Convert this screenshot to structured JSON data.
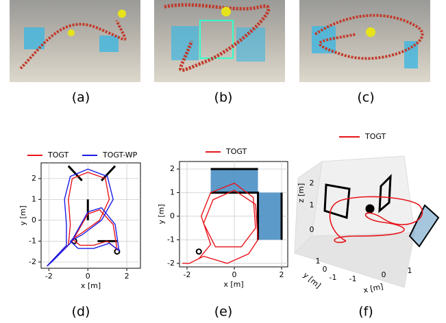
{
  "panels": [
    "(a)",
    "(b)",
    "(c)",
    "(d)",
    "(e)",
    "(f)"
  ],
  "chart_data": [
    {
      "type": "line",
      "xlabel": "x [m]",
      "ylabel": "y [m]",
      "xlim": [
        -2.4,
        2.7
      ],
      "ylim": [
        -2.3,
        2.75
      ],
      "xticks": [
        -2,
        0,
        2
      ],
      "yticks": [
        -2,
        -1,
        0,
        1,
        2
      ],
      "grid": true,
      "legend": "top",
      "series": [
        {
          "name": "TOGT",
          "color": "#e8131a",
          "x": [
            -2.1,
            -1.6,
            -1.0,
            -0.9,
            -1.0,
            -0.8,
            0.0,
            0.9,
            1.1,
            0.6,
            -0.3,
            -0.8,
            -0.4,
            0.3,
            1.0,
            1.5,
            1.3,
            0.6,
            0.0,
            -0.8,
            -1.8,
            -2.1
          ],
          "values": [
            -2.2,
            -1.7,
            -1.2,
            -0.2,
            1.0,
            2.0,
            2.3,
            2.0,
            1.0,
            0.0,
            -0.6,
            -0.9,
            -1.2,
            -1.2,
            -1.0,
            -1.4,
            -0.2,
            0.5,
            0.3,
            -1.0,
            -1.9,
            -2.2
          ]
        },
        {
          "name": "TOGT-WP",
          "color": "#1a1ae8",
          "x": [
            -2.1,
            -1.6,
            -1.1,
            -1.1,
            -1.2,
            -0.9,
            0.0,
            1.0,
            1.3,
            0.7,
            -0.3,
            -0.9,
            -0.5,
            0.3,
            1.1,
            1.6,
            1.4,
            0.7,
            0.0,
            -0.9,
            -1.8,
            -2.1
          ],
          "values": [
            -2.2,
            -1.7,
            -1.2,
            -0.2,
            1.0,
            2.1,
            2.45,
            2.1,
            1.0,
            0.0,
            -0.7,
            -1.0,
            -1.35,
            -1.35,
            -1.1,
            -1.45,
            -0.2,
            0.6,
            0.4,
            -1.1,
            -1.95,
            -2.2
          ]
        }
      ]
    },
    {
      "type": "line",
      "xlabel": "x [m]",
      "ylabel": "y [m]",
      "xlim": [
        -2.32,
        2.26
      ],
      "ylim": [
        -2.15,
        2.32
      ],
      "xticks": [
        -2,
        0,
        2
      ],
      "yticks": [
        -2,
        -1,
        0,
        1,
        2
      ],
      "grid": true,
      "legend": "top",
      "series": [
        {
          "name": "TOGT",
          "color": "#e8131a",
          "x": [
            -2.2,
            -1.9,
            -1.5,
            -1.0,
            -1.4,
            -1.0,
            0.0,
            0.8,
            0.9,
            0.3,
            -0.8,
            -1.3,
            -0.9,
            0.0,
            0.9,
            1.0,
            0.6,
            -0.3,
            -1.3,
            -1.9,
            -2.2
          ],
          "values": [
            -2.0,
            -2.0,
            -1.8,
            -1.2,
            0.0,
            1.0,
            1.4,
            0.8,
            -0.5,
            -1.3,
            -1.3,
            -0.3,
            0.7,
            1.1,
            0.5,
            -1.0,
            -1.6,
            -2.0,
            -1.7,
            -2.0,
            -2.0
          ]
        }
      ]
    },
    {
      "type": "line3d",
      "xlabel": "x [m]",
      "ylabel": "y [m]",
      "zlabel": "z [m]",
      "xticks": [
        -1,
        0,
        1
      ],
      "yticks": [
        -1,
        0,
        1
      ],
      "zticks": [
        0,
        1,
        2
      ],
      "legend": "top",
      "series": [
        {
          "name": "TOGT",
          "color": "#e8131a"
        }
      ]
    }
  ]
}
